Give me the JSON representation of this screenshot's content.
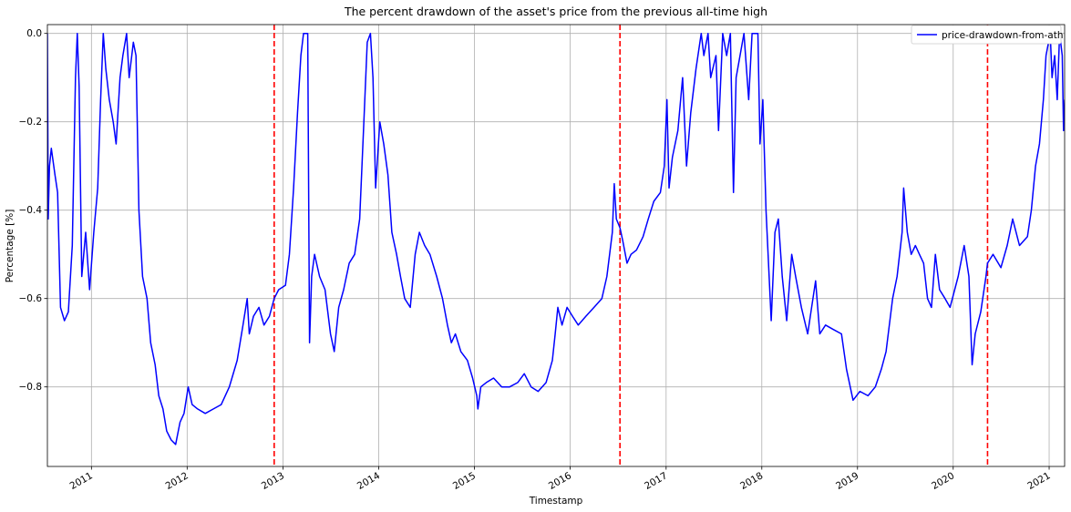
{
  "chart_data": {
    "type": "line",
    "title": "The percent drawdown of the asset's price from the previous all-time high",
    "xlabel": "Timestamp",
    "ylabel": "Percentage [%]",
    "xlim": [
      "2010-07-17",
      "2021-03-01"
    ],
    "ylim": [
      -0.98,
      0.02
    ],
    "grid": true,
    "legend_position": "top-right",
    "x_tick_labels": [
      "2011",
      "2012",
      "2013",
      "2014",
      "2015",
      "2016",
      "2017",
      "2018",
      "2019",
      "2020",
      "2021"
    ],
    "y_ticks": [
      0.0,
      -0.2,
      -0.4,
      -0.6,
      -0.8
    ],
    "y_tick_labels": [
      "0.0",
      "−0.2",
      "−0.4",
      "−0.6",
      "−0.8"
    ],
    "vertical_lines": {
      "color": "#ff0000",
      "style": "dashed",
      "dates": [
        "2012-11-28",
        "2016-07-09",
        "2020-05-11"
      ]
    },
    "series": [
      {
        "name": "price-drawdown-from-ath",
        "color": "#0000ff",
        "points": [
          [
            "2010-07-17",
            0.0
          ],
          [
            "2010-07-20",
            -0.42
          ],
          [
            "2010-07-25",
            -0.3
          ],
          [
            "2010-08-01",
            -0.26
          ],
          [
            "2010-08-15",
            -0.32
          ],
          [
            "2010-08-25",
            -0.36
          ],
          [
            "2010-09-05",
            -0.62
          ],
          [
            "2010-09-20",
            -0.65
          ],
          [
            "2010-10-05",
            -0.63
          ],
          [
            "2010-10-20",
            -0.48
          ],
          [
            "2010-11-01",
            -0.1
          ],
          [
            "2010-11-08",
            0.0
          ],
          [
            "2010-11-15",
            -0.12
          ],
          [
            "2010-11-25",
            -0.55
          ],
          [
            "2010-12-10",
            -0.45
          ],
          [
            "2010-12-25",
            -0.58
          ],
          [
            "2011-01-10",
            -0.45
          ],
          [
            "2011-01-25",
            -0.35
          ],
          [
            "2011-02-05",
            -0.15
          ],
          [
            "2011-02-15",
            0.0
          ],
          [
            "2011-02-25",
            -0.08
          ],
          [
            "2011-03-10",
            -0.15
          ],
          [
            "2011-03-25",
            -0.2
          ],
          [
            "2011-04-05",
            -0.25
          ],
          [
            "2011-04-20",
            -0.1
          ],
          [
            "2011-05-01",
            -0.05
          ],
          [
            "2011-05-15",
            0.0
          ],
          [
            "2011-05-25",
            -0.1
          ],
          [
            "2011-06-10",
            -0.02
          ],
          [
            "2011-06-20",
            -0.05
          ],
          [
            "2011-07-01",
            -0.4
          ],
          [
            "2011-07-15",
            -0.55
          ],
          [
            "2011-08-01",
            -0.6
          ],
          [
            "2011-08-15",
            -0.7
          ],
          [
            "2011-09-01",
            -0.75
          ],
          [
            "2011-09-15",
            -0.82
          ],
          [
            "2011-10-01",
            -0.85
          ],
          [
            "2011-10-15",
            -0.9
          ],
          [
            "2011-11-01",
            -0.92
          ],
          [
            "2011-11-18",
            -0.93
          ],
          [
            "2011-12-05",
            -0.88
          ],
          [
            "2011-12-20",
            -0.86
          ],
          [
            "2012-01-05",
            -0.8
          ],
          [
            "2012-01-20",
            -0.84
          ],
          [
            "2012-02-10",
            -0.85
          ],
          [
            "2012-03-10",
            -0.86
          ],
          [
            "2012-04-10",
            -0.85
          ],
          [
            "2012-05-10",
            -0.84
          ],
          [
            "2012-06-10",
            -0.8
          ],
          [
            "2012-07-10",
            -0.74
          ],
          [
            "2012-08-01",
            -0.66
          ],
          [
            "2012-08-17",
            -0.6
          ],
          [
            "2012-08-25",
            -0.68
          ],
          [
            "2012-09-10",
            -0.64
          ],
          [
            "2012-10-01",
            -0.62
          ],
          [
            "2012-10-20",
            -0.66
          ],
          [
            "2012-11-10",
            -0.64
          ],
          [
            "2012-11-28",
            -0.6
          ],
          [
            "2012-12-15",
            -0.58
          ],
          [
            "2013-01-10",
            -0.57
          ],
          [
            "2013-01-25",
            -0.5
          ],
          [
            "2013-02-10",
            -0.35
          ],
          [
            "2013-02-25",
            -0.18
          ],
          [
            "2013-03-10",
            -0.05
          ],
          [
            "2013-03-20",
            0.0
          ],
          [
            "2013-04-05",
            0.0
          ],
          [
            "2013-04-12",
            -0.7
          ],
          [
            "2013-04-20",
            -0.55
          ],
          [
            "2013-05-01",
            -0.5
          ],
          [
            "2013-05-20",
            -0.55
          ],
          [
            "2013-06-10",
            -0.58
          ],
          [
            "2013-07-01",
            -0.68
          ],
          [
            "2013-07-15",
            -0.72
          ],
          [
            "2013-08-01",
            -0.62
          ],
          [
            "2013-08-20",
            -0.58
          ],
          [
            "2013-09-10",
            -0.52
          ],
          [
            "2013-10-01",
            -0.5
          ],
          [
            "2013-10-20",
            -0.42
          ],
          [
            "2013-11-05",
            -0.2
          ],
          [
            "2013-11-18",
            -0.02
          ],
          [
            "2013-11-30",
            0.0
          ],
          [
            "2013-12-10",
            -0.1
          ],
          [
            "2013-12-20",
            -0.35
          ],
          [
            "2014-01-05",
            -0.2
          ],
          [
            "2014-01-20",
            -0.25
          ],
          [
            "2014-02-05",
            -0.32
          ],
          [
            "2014-02-20",
            -0.45
          ],
          [
            "2014-03-10",
            -0.5
          ],
          [
            "2014-03-25",
            -0.55
          ],
          [
            "2014-04-10",
            -0.6
          ],
          [
            "2014-05-01",
            -0.62
          ],
          [
            "2014-05-20",
            -0.5
          ],
          [
            "2014-06-05",
            -0.45
          ],
          [
            "2014-06-25",
            -0.48
          ],
          [
            "2014-07-15",
            -0.5
          ],
          [
            "2014-08-10",
            -0.55
          ],
          [
            "2014-09-01",
            -0.6
          ],
          [
            "2014-09-20",
            -0.66
          ],
          [
            "2014-10-05",
            -0.7
          ],
          [
            "2014-10-20",
            -0.68
          ],
          [
            "2014-11-10",
            -0.72
          ],
          [
            "2014-12-05",
            -0.74
          ],
          [
            "2014-12-25",
            -0.78
          ],
          [
            "2015-01-10",
            -0.82
          ],
          [
            "2015-01-14",
            -0.85
          ],
          [
            "2015-01-25",
            -0.8
          ],
          [
            "2015-02-15",
            -0.79
          ],
          [
            "2015-03-15",
            -0.78
          ],
          [
            "2015-04-15",
            -0.8
          ],
          [
            "2015-05-15",
            -0.8
          ],
          [
            "2015-06-15",
            -0.79
          ],
          [
            "2015-07-10",
            -0.77
          ],
          [
            "2015-08-05",
            -0.8
          ],
          [
            "2015-09-01",
            -0.81
          ],
          [
            "2015-10-01",
            -0.79
          ],
          [
            "2015-10-25",
            -0.74
          ],
          [
            "2015-11-05",
            -0.68
          ],
          [
            "2015-11-15",
            -0.62
          ],
          [
            "2015-12-01",
            -0.66
          ],
          [
            "2015-12-20",
            -0.62
          ],
          [
            "2016-01-10",
            -0.64
          ],
          [
            "2016-02-01",
            -0.66
          ],
          [
            "2016-03-01",
            -0.64
          ],
          [
            "2016-04-01",
            -0.62
          ],
          [
            "2016-05-01",
            -0.6
          ],
          [
            "2016-05-20",
            -0.55
          ],
          [
            "2016-06-10",
            -0.45
          ],
          [
            "2016-06-17",
            -0.34
          ],
          [
            "2016-06-25",
            -0.42
          ],
          [
            "2016-07-09",
            -0.44
          ],
          [
            "2016-07-20",
            -0.47
          ],
          [
            "2016-08-05",
            -0.52
          ],
          [
            "2016-08-20",
            -0.5
          ],
          [
            "2016-09-10",
            -0.49
          ],
          [
            "2016-10-05",
            -0.46
          ],
          [
            "2016-10-25",
            -0.42
          ],
          [
            "2016-11-15",
            -0.38
          ],
          [
            "2016-12-10",
            -0.36
          ],
          [
            "2016-12-25",
            -0.3
          ],
          [
            "2017-01-04",
            -0.15
          ],
          [
            "2017-01-12",
            -0.35
          ],
          [
            "2017-01-25",
            -0.28
          ],
          [
            "2017-02-15",
            -0.22
          ],
          [
            "2017-03-05",
            -0.1
          ],
          [
            "2017-03-20",
            -0.3
          ],
          [
            "2017-04-05",
            -0.18
          ],
          [
            "2017-04-25",
            -0.08
          ],
          [
            "2017-05-15",
            0.0
          ],
          [
            "2017-05-25",
            -0.05
          ],
          [
            "2017-06-10",
            0.0
          ],
          [
            "2017-06-20",
            -0.1
          ],
          [
            "2017-07-10",
            -0.05
          ],
          [
            "2017-07-20",
            -0.22
          ],
          [
            "2017-08-05",
            0.0
          ],
          [
            "2017-08-20",
            -0.05
          ],
          [
            "2017-09-03",
            0.0
          ],
          [
            "2017-09-15",
            -0.36
          ],
          [
            "2017-09-25",
            -0.1
          ],
          [
            "2017-10-10",
            -0.05
          ],
          [
            "2017-10-25",
            0.0
          ],
          [
            "2017-11-12",
            -0.15
          ],
          [
            "2017-11-25",
            0.0
          ],
          [
            "2017-12-17",
            0.0
          ],
          [
            "2017-12-25",
            -0.25
          ],
          [
            "2018-01-05",
            -0.15
          ],
          [
            "2018-01-17",
            -0.4
          ],
          [
            "2018-02-06",
            -0.65
          ],
          [
            "2018-02-20",
            -0.45
          ],
          [
            "2018-03-05",
            -0.42
          ],
          [
            "2018-03-20",
            -0.55
          ],
          [
            "2018-04-06",
            -0.65
          ],
          [
            "2018-04-25",
            -0.5
          ],
          [
            "2018-05-10",
            -0.55
          ],
          [
            "2018-06-01",
            -0.62
          ],
          [
            "2018-06-25",
            -0.68
          ],
          [
            "2018-07-25",
            -0.56
          ],
          [
            "2018-08-10",
            -0.68
          ],
          [
            "2018-09-01",
            -0.66
          ],
          [
            "2018-10-01",
            -0.67
          ],
          [
            "2018-11-01",
            -0.68
          ],
          [
            "2018-11-20",
            -0.76
          ],
          [
            "2018-12-15",
            -0.83
          ],
          [
            "2019-01-10",
            -0.81
          ],
          [
            "2019-02-10",
            -0.82
          ],
          [
            "2019-03-10",
            -0.8
          ],
          [
            "2019-04-02",
            -0.76
          ],
          [
            "2019-04-20",
            -0.72
          ],
          [
            "2019-05-15",
            -0.6
          ],
          [
            "2019-06-01",
            -0.55
          ],
          [
            "2019-06-20",
            -0.45
          ],
          [
            "2019-06-26",
            -0.35
          ],
          [
            "2019-07-10",
            -0.45
          ],
          [
            "2019-07-25",
            -0.5
          ],
          [
            "2019-08-10",
            -0.48
          ],
          [
            "2019-08-25",
            -0.5
          ],
          [
            "2019-09-10",
            -0.52
          ],
          [
            "2019-09-25",
            -0.6
          ],
          [
            "2019-10-10",
            -0.62
          ],
          [
            "2019-10-25",
            -0.5
          ],
          [
            "2019-11-10",
            -0.58
          ],
          [
            "2019-12-01",
            -0.6
          ],
          [
            "2019-12-20",
            -0.62
          ],
          [
            "2020-01-20",
            -0.55
          ],
          [
            "2020-02-12",
            -0.48
          ],
          [
            "2020-03-01",
            -0.55
          ],
          [
            "2020-03-13",
            -0.75
          ],
          [
            "2020-03-25",
            -0.68
          ],
          [
            "2020-04-15",
            -0.63
          ],
          [
            "2020-05-05",
            -0.55
          ],
          [
            "2020-05-11",
            -0.52
          ],
          [
            "2020-06-01",
            -0.5
          ],
          [
            "2020-07-01",
            -0.53
          ],
          [
            "2020-07-25",
            -0.48
          ],
          [
            "2020-08-15",
            -0.42
          ],
          [
            "2020-09-10",
            -0.48
          ],
          [
            "2020-10-10",
            -0.46
          ],
          [
            "2020-10-25",
            -0.4
          ],
          [
            "2020-11-10",
            -0.3
          ],
          [
            "2020-11-25",
            -0.25
          ],
          [
            "2020-12-10",
            -0.15
          ],
          [
            "2020-12-20",
            -0.05
          ],
          [
            "2021-01-05",
            0.0
          ],
          [
            "2021-01-12",
            -0.1
          ],
          [
            "2021-01-22",
            -0.05
          ],
          [
            "2021-02-01",
            -0.15
          ],
          [
            "2021-02-10",
            0.0
          ],
          [
            "2021-02-20",
            -0.05
          ],
          [
            "2021-02-25",
            -0.22
          ],
          [
            "2021-03-01",
            -0.15
          ]
        ]
      }
    ]
  }
}
